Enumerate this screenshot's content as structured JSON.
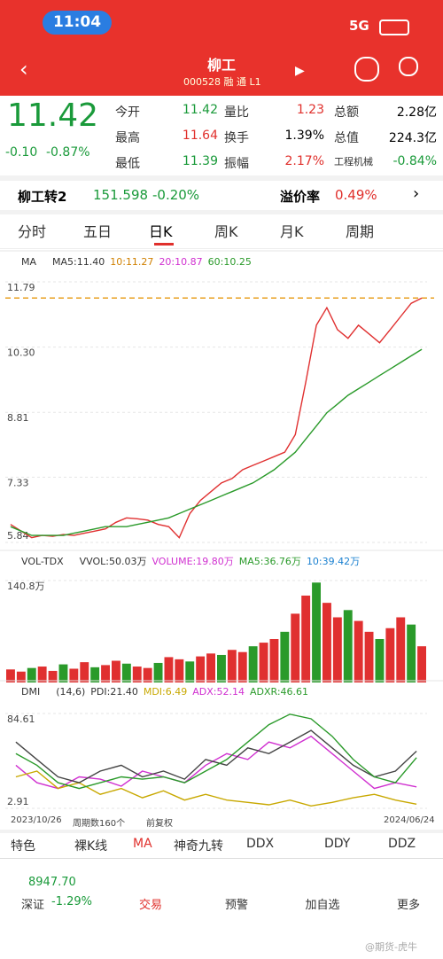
{
  "status": {
    "time": "11:04",
    "network": "5G"
  },
  "header": {
    "title": "柳工",
    "code": "000528",
    "tags": [
      "融",
      "通",
      "L1"
    ]
  },
  "quote": {
    "price": "11.42",
    "change": "-0.10",
    "change_pct": "-0.87%",
    "cells": [
      [
        "今开",
        "11.42",
        "量比",
        "1.23",
        "总额",
        "2.28亿"
      ],
      [
        "最高",
        "11.64",
        "换手",
        "1.39%",
        "总值",
        "224.3亿"
      ],
      [
        "最低",
        "11.39",
        "振幅",
        "2.17%",
        "工程机械",
        "-0.84%"
      ]
    ]
  },
  "bond": {
    "name": "柳工转2",
    "price": "151.598",
    "change": "-0.20%",
    "premium_label": "溢价率",
    "premium": "0.49%"
  },
  "tabs": [
    "分时",
    "五日",
    "日K",
    "周K",
    "月K",
    "周期"
  ],
  "chart_data": [
    {
      "type": "line",
      "legend": [
        "MA",
        "MA5:11.40",
        "10:11.27",
        "20:10.87",
        "60:10.25"
      ],
      "ylim": [
        5.84,
        11.79
      ],
      "yticks": [
        5.84,
        7.33,
        8.81,
        {
          "value": 10.3,
          "label": "10.30"
        },
        11.79
      ],
      "price_line": 11.42,
      "series": [
        {
          "color": "#e03030",
          "values": [
            6.25,
            6.1,
            5.95,
            6.0,
            5.98,
            6.02,
            6.0,
            6.05,
            6.1,
            6.15,
            6.3,
            6.4,
            6.38,
            6.35,
            6.25,
            6.2,
            5.95,
            6.5,
            6.8,
            7.0,
            7.2,
            7.3,
            7.5,
            7.6,
            7.7,
            7.8,
            7.9,
            8.3,
            9.5,
            10.8,
            11.2,
            10.7,
            10.5,
            10.8,
            10.6,
            10.4,
            10.7,
            11.0,
            11.3,
            11.42
          ]
        },
        {
          "color": "#2a9a2a",
          "values": [
            6.2,
            6.1,
            6.0,
            6.0,
            6.0,
            6.0,
            6.05,
            6.1,
            6.15,
            6.2,
            6.2,
            6.2,
            6.25,
            6.3,
            6.35,
            6.4,
            6.5,
            6.6,
            6.7,
            6.8,
            6.9,
            7.0,
            7.1,
            7.2,
            7.35,
            7.5,
            7.7,
            7.9,
            8.2,
            8.5,
            8.8,
            9.0,
            9.2,
            9.35,
            9.5,
            9.65,
            9.8,
            9.95,
            10.1,
            10.25
          ]
        }
      ]
    },
    {
      "type": "bar",
      "legend": [
        "VOL-TDX",
        "VVOL:50.03万",
        "VOLUME:19.80万",
        "MA5:36.76万",
        "10:39.42万"
      ],
      "ylim": [
        0,
        140.8
      ],
      "yticks": [
        {
          "value": 140.8,
          "label": "140.8万"
        }
      ],
      "color": "#e03030",
      "values": [
        18,
        15,
        20,
        22,
        16,
        25,
        19,
        28,
        21,
        24,
        30,
        26,
        22,
        20,
        27,
        35,
        32,
        29,
        36,
        40,
        38,
        45,
        42,
        50,
        55,
        60,
        70,
        95,
        120,
        138,
        110,
        90,
        100,
        85,
        70,
        60,
        75,
        90,
        80,
        50
      ]
    },
    {
      "type": "line",
      "legend": [
        "DMI",
        "(14,6)",
        "PDI:21.40",
        "MDI:6.49",
        "ADX:52.14",
        "ADXR:46.61"
      ],
      "ylim": [
        2.91,
        84.61
      ],
      "yticks": [
        2.91,
        84.61
      ],
      "series": [
        {
          "color": "#d030d0",
          "values": [
            40,
            25,
            20,
            30,
            28,
            22,
            35,
            30,
            25,
            40,
            50,
            45,
            60,
            55,
            65,
            50,
            35,
            20,
            25,
            21.4
          ]
        },
        {
          "color": "#c8a800",
          "values": [
            30,
            35,
            20,
            25,
            15,
            20,
            12,
            18,
            10,
            15,
            10,
            8,
            6,
            10,
            5,
            8,
            12,
            15,
            10,
            6.49
          ]
        },
        {
          "color": "#444444",
          "values": [
            60,
            45,
            30,
            25,
            35,
            40,
            30,
            35,
            28,
            45,
            40,
            55,
            50,
            60,
            70,
            55,
            40,
            30,
            35,
            52.14
          ]
        },
        {
          "color": "#2a9a2a",
          "values": [
            50,
            40,
            25,
            20,
            25,
            30,
            28,
            30,
            25,
            35,
            45,
            60,
            75,
            84,
            80,
            65,
            45,
            30,
            25,
            46.61
          ]
        }
      ]
    }
  ],
  "footer": {
    "start": "2023/10/26",
    "count": "周期数160个",
    "adjust": "前复权",
    "end": "2024/06/24"
  },
  "indicators": [
    "特色",
    "裸K线",
    "MA",
    "神奇九转",
    "DDX",
    "DDY",
    "DDZ"
  ],
  "nav": {
    "index_value": "8947.70",
    "index_name": "深证",
    "index_change": "-1.29%",
    "items": [
      "交易",
      "预警",
      "加自选",
      "更多"
    ]
  },
  "watermark": "@期货-虎牛"
}
